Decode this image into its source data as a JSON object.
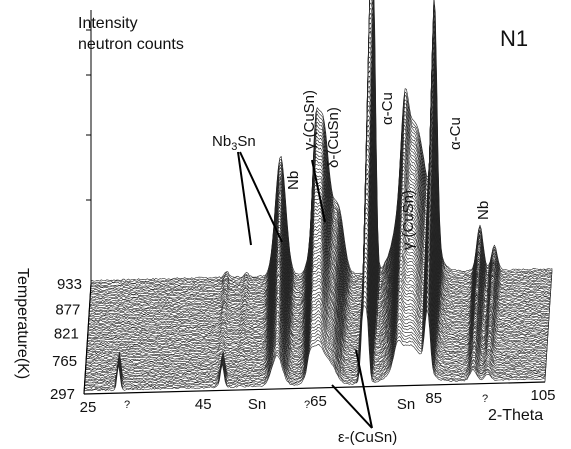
{
  "panel_label": "N1",
  "chart_data": {
    "type": "area",
    "title": "",
    "zlabel": [
      "Intensity",
      "neutron counts"
    ],
    "xlabel": "2-Theta",
    "ylabel": "Temperature(K)",
    "x_ticks": [
      "25",
      "45",
      "65",
      "85",
      "105"
    ],
    "y_ticks": [
      "297",
      "765",
      "821",
      "877",
      "933"
    ],
    "xlim": [
      25,
      105
    ],
    "peaks": [
      {
        "x": 48.5,
        "label": "Nb3Sn"
      },
      {
        "x": 58.5,
        "label": "Nb"
      },
      {
        "x": 64.0,
        "label": "γ-(CuSn)"
      },
      {
        "x": 65.5,
        "label": "δ-(CuSn)"
      },
      {
        "x": 68.0,
        "label": "ε-(CuSn)"
      },
      {
        "x": 73.5,
        "label": "α-Cu"
      },
      {
        "x": 79.5,
        "label": "γ-(CuSn)"
      },
      {
        "x": 84.5,
        "label": "α-Cu"
      },
      {
        "x": 92.5,
        "label": "Nb"
      }
    ],
    "annotations": [
      "?",
      "Sn",
      "?",
      "Sn",
      "?"
    ]
  }
}
